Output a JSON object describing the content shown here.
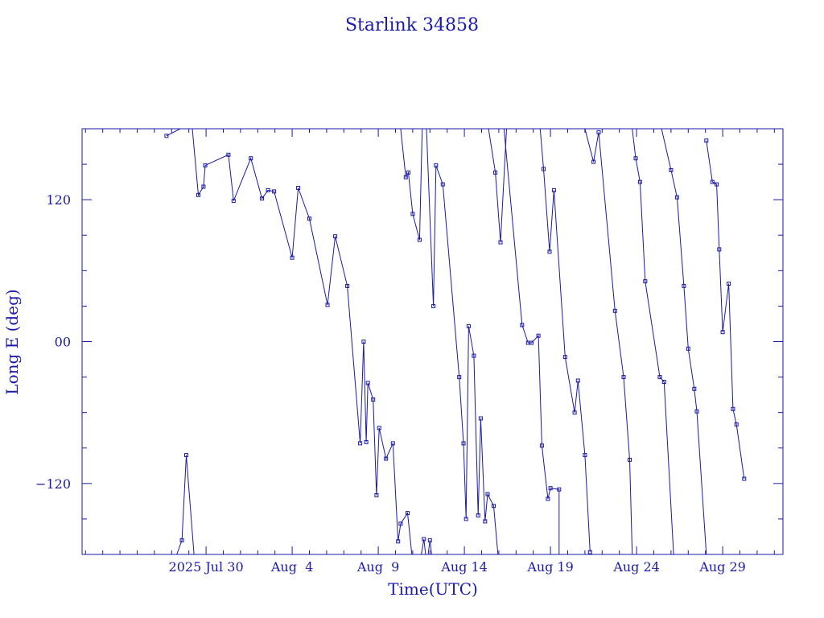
{
  "chart_data": {
    "type": "line",
    "title": "Starlink 34858",
    "xlabel": "Time(UTC)",
    "ylabel": "Long E (deg)",
    "x_unit": "day of year 2025",
    "xlim": [
      203.8,
      244.5
    ],
    "ylim": [
      -180,
      180
    ],
    "x_ticks": [
      {
        "x": 211,
        "label": "2025 Jul 30"
      },
      {
        "x": 216,
        "label": "Aug  4"
      },
      {
        "x": 221,
        "label": "Aug  9"
      },
      {
        "x": 226,
        "label": "Aug 14"
      },
      {
        "x": 231,
        "label": "Aug 19"
      },
      {
        "x": 236,
        "label": "Aug 24"
      },
      {
        "x": 241,
        "label": "Aug 29"
      }
    ],
    "y_ticks": [
      {
        "y": 120,
        "label": "120"
      },
      {
        "y": 0,
        "label": "00"
      },
      {
        "y": -120,
        "label": "−120"
      }
    ],
    "y_minor_step": 30,
    "series": [
      {
        "values": [
          [
            208.7,
            174
          ],
          [
            209.5,
            180
          ]
        ]
      },
      {
        "values": [
          [
            209.3,
            -180
          ],
          [
            209.6,
            -168
          ],
          [
            209.85,
            -96
          ],
          [
            210.3,
            -180
          ]
        ]
      },
      {
        "values": [
          [
            210.2,
            180
          ],
          [
            210.55,
            124
          ],
          [
            210.85,
            131
          ],
          [
            210.95,
            149
          ],
          [
            212.3,
            158
          ],
          [
            212.6,
            119
          ],
          [
            213.6,
            155
          ],
          [
            214.25,
            121
          ],
          [
            214.6,
            128
          ],
          [
            214.95,
            127
          ],
          [
            216.0,
            71
          ],
          [
            216.35,
            130
          ],
          [
            217.0,
            104
          ],
          [
            218.05,
            31
          ],
          [
            218.5,
            89
          ],
          [
            219.2,
            47
          ],
          [
            219.95,
            -86
          ],
          [
            220.15,
            0
          ],
          [
            220.3,
            -85
          ],
          [
            220.4,
            -35
          ],
          [
            220.7,
            -49
          ],
          [
            220.9,
            -130
          ],
          [
            221.05,
            -73
          ],
          [
            221.45,
            -99
          ],
          [
            221.85,
            -86
          ],
          [
            222.15,
            -169
          ],
          [
            222.3,
            -154
          ],
          [
            222.7,
            -145
          ],
          [
            222.95,
            -180
          ]
        ]
      },
      {
        "values": [
          [
            222.3,
            180
          ],
          [
            222.6,
            139
          ],
          [
            222.75,
            143
          ],
          [
            223.0,
            108
          ],
          [
            223.4,
            86
          ],
          [
            223.55,
            180
          ]
        ]
      },
      {
        "values": [
          [
            223.5,
            -180
          ],
          [
            223.65,
            -167
          ],
          [
            223.75,
            -180
          ]
        ]
      },
      {
        "values": [
          [
            223.8,
            180
          ],
          [
            224.2,
            30
          ],
          [
            224.35,
            149
          ],
          [
            224.75,
            133
          ],
          [
            225.7,
            -30
          ],
          [
            225.95,
            -86
          ],
          [
            226.1,
            -150
          ],
          [
            226.25,
            13
          ],
          [
            226.55,
            -12
          ],
          [
            226.8,
            -147
          ],
          [
            226.95,
            -65
          ],
          [
            227.2,
            -152
          ],
          [
            227.35,
            -129
          ],
          [
            227.7,
            -139
          ],
          [
            227.95,
            -180
          ]
        ]
      },
      {
        "values": [
          [
            223.9,
            -180
          ],
          [
            224.0,
            -168
          ],
          [
            224.1,
            -180
          ]
        ]
      },
      {
        "values": [
          [
            227.4,
            180
          ],
          [
            227.8,
            143
          ],
          [
            228.1,
            84
          ],
          [
            228.45,
            180
          ]
        ]
      },
      {
        "values": [
          [
            228.3,
            180
          ],
          [
            229.35,
            14
          ],
          [
            229.7,
            -1
          ],
          [
            229.9,
            -1
          ],
          [
            230.3,
            5
          ],
          [
            230.5,
            -88
          ],
          [
            230.85,
            -133
          ],
          [
            231.0,
            -124
          ],
          [
            231.5,
            -125
          ],
          [
            231.5,
            -180
          ]
        ]
      },
      {
        "values": [
          [
            230.4,
            180
          ],
          [
            230.6,
            146
          ],
          [
            230.95,
            76
          ],
          [
            231.2,
            128
          ],
          [
            231.85,
            -13
          ],
          [
            232.4,
            -60
          ],
          [
            232.6,
            -33
          ],
          [
            233.0,
            -96
          ],
          [
            233.3,
            -178
          ]
        ]
      },
      {
        "values": [
          [
            233.0,
            180
          ],
          [
            233.5,
            152
          ],
          [
            233.8,
            177
          ],
          [
            234.75,
            26
          ],
          [
            235.25,
            -30
          ],
          [
            235.6,
            -100
          ],
          [
            235.75,
            -180
          ]
        ]
      },
      {
        "values": [
          [
            235.75,
            180
          ],
          [
            235.95,
            155
          ],
          [
            236.2,
            135
          ],
          [
            236.5,
            51
          ],
          [
            237.35,
            -30
          ],
          [
            237.6,
            -34
          ],
          [
            238.15,
            -180
          ]
        ]
      },
      {
        "values": [
          [
            237.45,
            180
          ],
          [
            238.0,
            145
          ],
          [
            238.35,
            122
          ],
          [
            238.75,
            47
          ],
          [
            239.0,
            -6
          ],
          [
            239.35,
            -40
          ],
          [
            239.5,
            -59
          ],
          [
            240.05,
            -180
          ]
        ]
      },
      {
        "values": [
          [
            240.05,
            170
          ],
          [
            240.4,
            135
          ],
          [
            240.65,
            133
          ],
          [
            240.8,
            78
          ],
          [
            241.0,
            8
          ],
          [
            241.35,
            49
          ],
          [
            241.6,
            -57
          ],
          [
            241.8,
            -70
          ],
          [
            242.25,
            -116
          ]
        ]
      }
    ]
  }
}
